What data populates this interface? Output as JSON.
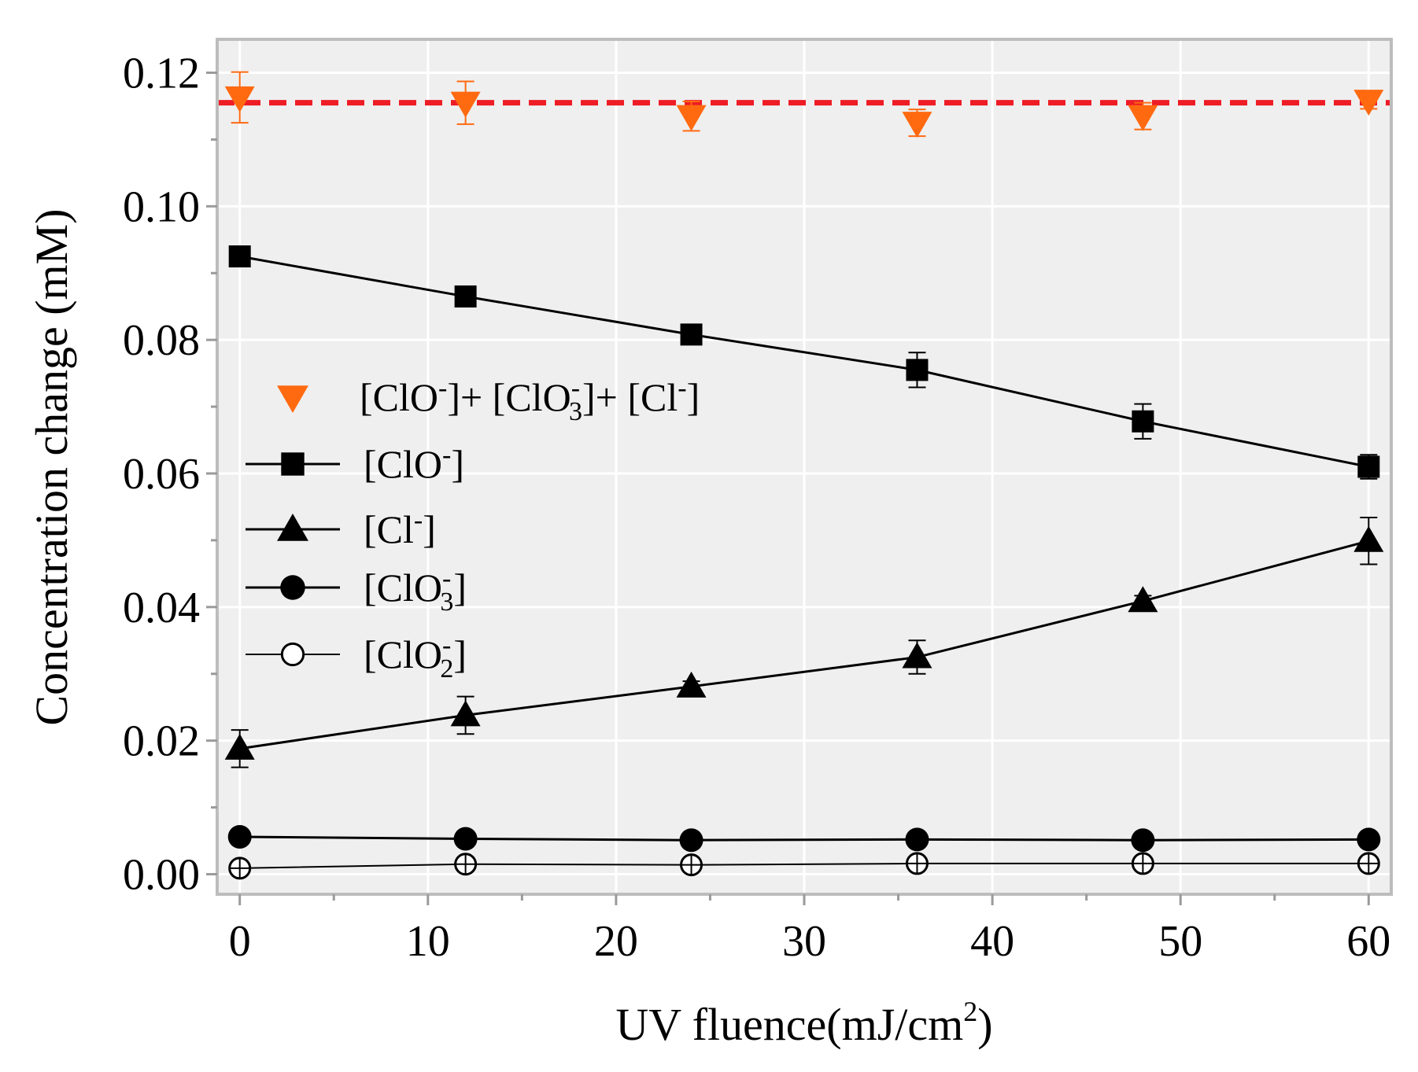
{
  "chart_data": {
    "type": "line",
    "xlabel": "UV fluence(mJ/cm",
    "xlabel_sup": "2",
    "xlabel_tail": ")",
    "ylabel": "Concentration change (mM)",
    "xlim": [
      -1.2,
      61.2
    ],
    "ylim": [
      -0.003,
      0.125
    ],
    "x_ticks": [
      0,
      10,
      20,
      30,
      40,
      50,
      60
    ],
    "x_tick_labels": [
      "0",
      "10",
      "20",
      "30",
      "40",
      "50",
      "60"
    ],
    "y_ticks": [
      0.0,
      0.02,
      0.04,
      0.06,
      0.08,
      0.1,
      0.12
    ],
    "y_tick_labels": [
      "0.00",
      "0.02",
      "0.04",
      "0.06",
      "0.08",
      "0.10",
      "0.12"
    ],
    "grid": true,
    "legend_position": "center-left",
    "reference_line": {
      "y": 0.1155,
      "style": "dashed",
      "color": "#ee1c25"
    },
    "series": [
      {
        "legend_parts": [
          "[ClO",
          "-",
          "]+ [ClO",
          "-",
          "3",
          "]+ [Cl",
          "-",
          "]"
        ],
        "marker": "triangle-down",
        "color": "#ff6a10",
        "line": false,
        "x": [
          0,
          12,
          24,
          36,
          48,
          60
        ],
        "y": [
          0.1163,
          0.1155,
          0.1135,
          0.1125,
          0.1135,
          0.1158
        ],
        "err": [
          0.0038,
          0.0032,
          0.0022,
          0.002,
          0.002,
          0.0012
        ]
      },
      {
        "legend_parts": [
          "[ClO",
          "-",
          "]"
        ],
        "marker": "square",
        "color": "#000000",
        "line": true,
        "x": [
          0,
          12,
          24,
          36,
          48,
          60
        ],
        "y": [
          0.0925,
          0.0865,
          0.0808,
          0.0755,
          0.0678,
          0.061
        ],
        "err": [
          0.0012,
          0.0012,
          0.0012,
          0.0026,
          0.0026,
          0.0018
        ]
      },
      {
        "legend_parts": [
          "[Cl",
          "-",
          "]"
        ],
        "marker": "triangle-up",
        "color": "#000000",
        "line": true,
        "x": [
          0,
          12,
          24,
          36,
          48,
          60
        ],
        "y": [
          0.0188,
          0.0238,
          0.0281,
          0.0325,
          0.0409,
          0.0499
        ],
        "err": [
          0.0028,
          0.0028,
          0.0008,
          0.0025,
          0.0008,
          0.0035
        ]
      },
      {
        "legend_parts": [
          "[ClO",
          "-",
          "3",
          "]"
        ],
        "marker": "circle",
        "color": "#000000",
        "line": true,
        "x": [
          0,
          12,
          24,
          36,
          48,
          60
        ],
        "y": [
          0.0056,
          0.0053,
          0.0051,
          0.0052,
          0.0051,
          0.0052
        ],
        "err": [
          0.0003,
          0.0003,
          0.0003,
          0.0003,
          0.0003,
          0.0003
        ]
      },
      {
        "legend_parts": [
          "[ClO",
          "-",
          "2",
          "]"
        ],
        "marker": "circle-open",
        "color": "#000000",
        "line": true,
        "x": [
          0,
          12,
          24,
          36,
          48,
          60
        ],
        "y": [
          0.0009,
          0.0015,
          0.0014,
          0.0016,
          0.0016,
          0.0016
        ],
        "err": [
          0.0005,
          0.0005,
          0.0005,
          0.0005,
          0.0005,
          0.0005
        ]
      }
    ]
  }
}
